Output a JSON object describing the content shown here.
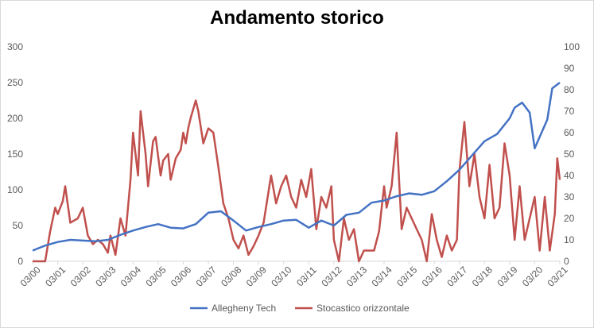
{
  "chart_data": {
    "type": "line",
    "title": "Andamento storico",
    "x_ticks": [
      "03/00",
      "03/01",
      "03/02",
      "03/03",
      "03/04",
      "03/05",
      "03/06",
      "03/07",
      "03/08",
      "03/09",
      "03/10",
      "03/11",
      "03/12",
      "03/13",
      "03/14",
      "03/15",
      "03/16",
      "03/17",
      "03/18",
      "03/19",
      "03/20",
      "03/21"
    ],
    "y_left": {
      "ylim": [
        0,
        300
      ],
      "ticks": [
        "0",
        "50",
        "100",
        "150",
        "200",
        "250",
        "300"
      ]
    },
    "y_right": {
      "ylim": [
        0,
        100
      ],
      "ticks": [
        "0",
        "10",
        "20",
        "30",
        "40",
        "50",
        "60",
        "70",
        "80",
        "90",
        "100"
      ]
    },
    "grid": false,
    "legend_position": "bottom",
    "series": [
      {
        "name": "Allegheny Tech",
        "color": "#4472C4",
        "axis": "left",
        "x": [
          0,
          0.5,
          1,
          1.5,
          2,
          2.5,
          3,
          3.5,
          4,
          4.5,
          5,
          5.5,
          6,
          6.5,
          7,
          7.5,
          8,
          8.5,
          9,
          9.5,
          10,
          10.5,
          11,
          11.5,
          12,
          12.5,
          13,
          13.5,
          14,
          14.5,
          15,
          15.5,
          16,
          16.5,
          17,
          17.5,
          18,
          18.5,
          19,
          19.2,
          19.5,
          19.8,
          20,
          20.5,
          20.7,
          21
        ],
        "values": [
          15,
          22,
          27,
          30,
          29,
          28,
          30,
          37,
          43,
          48,
          52,
          47,
          46,
          52,
          68,
          70,
          57,
          43,
          48,
          52,
          57,
          58,
          47,
          57,
          50,
          65,
          68,
          82,
          85,
          91,
          95,
          93,
          98,
          112,
          128,
          148,
          168,
          178,
          200,
          215,
          222,
          208,
          158,
          198,
          242,
          250
        ]
      },
      {
        "name": "Stocastico orizzontale",
        "color": "#C0504D",
        "axis": "right",
        "x": [
          0,
          0.5,
          0.7,
          0.9,
          1.0,
          1.2,
          1.3,
          1.5,
          1.8,
          2.0,
          2.2,
          2.4,
          2.6,
          2.8,
          3.0,
          3.1,
          3.3,
          3.5,
          3.7,
          3.9,
          4.0,
          4.2,
          4.3,
          4.5,
          4.6,
          4.8,
          4.9,
          5.1,
          5.2,
          5.4,
          5.5,
          5.7,
          5.9,
          6.0,
          6.1,
          6.2,
          6.3,
          6.5,
          6.6,
          6.8,
          7.0,
          7.2,
          7.4,
          7.6,
          7.8,
          8.0,
          8.2,
          8.4,
          8.6,
          8.8,
          9.0,
          9.2,
          9.5,
          9.7,
          9.9,
          10.1,
          10.3,
          10.5,
          10.7,
          10.9,
          11.1,
          11.3,
          11.5,
          11.7,
          11.9,
          12.0,
          12.2,
          12.4,
          12.6,
          12.8,
          13.0,
          13.2,
          13.4,
          13.6,
          13.8,
          14.0,
          14.1,
          14.3,
          14.5,
          14.7,
          14.9,
          15.1,
          15.3,
          15.5,
          15.7,
          15.9,
          16.1,
          16.3,
          16.5,
          16.7,
          16.9,
          17.0,
          17.2,
          17.4,
          17.6,
          17.8,
          18.0,
          18.2,
          18.4,
          18.6,
          18.8,
          19.0,
          19.2,
          19.4,
          19.6,
          19.8,
          20.0,
          20.2,
          20.4,
          20.6,
          20.8,
          20.9,
          21.0
        ],
        "values": [
          0,
          0,
          14,
          25,
          22,
          28,
          35,
          18,
          20,
          25,
          12,
          8,
          10,
          8,
          4,
          12,
          3,
          20,
          12,
          38,
          60,
          40,
          70,
          50,
          35,
          56,
          58,
          40,
          47,
          50,
          38,
          48,
          52,
          60,
          55,
          62,
          67,
          75,
          70,
          55,
          62,
          60,
          44,
          27,
          20,
          10,
          6,
          12,
          3,
          7,
          12,
          18,
          40,
          27,
          35,
          40,
          30,
          25,
          38,
          30,
          43,
          15,
          30,
          25,
          35,
          10,
          0,
          20,
          10,
          15,
          0,
          5,
          5,
          5,
          14,
          35,
          25,
          35,
          60,
          15,
          25,
          20,
          15,
          10,
          0,
          22,
          10,
          2,
          12,
          5,
          10,
          42,
          65,
          35,
          50,
          30,
          20,
          45,
          20,
          25,
          55,
          40,
          10,
          35,
          10,
          20,
          30,
          5,
          30,
          5,
          22,
          48,
          38
        ]
      }
    ]
  }
}
